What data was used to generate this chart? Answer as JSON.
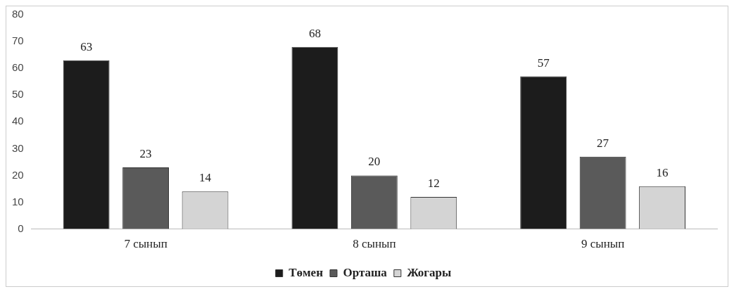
{
  "chart_data": {
    "type": "bar",
    "categories": [
      "7 сынып",
      "8 сынып",
      "9 сынып"
    ],
    "series": [
      {
        "name": "Төмен",
        "color": "#1c1c1c",
        "values": [
          63,
          68,
          57
        ]
      },
      {
        "name": "Орташа",
        "color": "#5a5a5a",
        "values": [
          23,
          20,
          27
        ]
      },
      {
        "name": "Жогары",
        "color": "#d4d4d4",
        "values": [
          14,
          12,
          16
        ]
      }
    ],
    "ylim": [
      0,
      80
    ],
    "yticks": [
      0,
      10,
      20,
      30,
      40,
      50,
      60,
      70,
      80
    ],
    "grid": false,
    "legend": "bottom",
    "data_labels": true
  }
}
